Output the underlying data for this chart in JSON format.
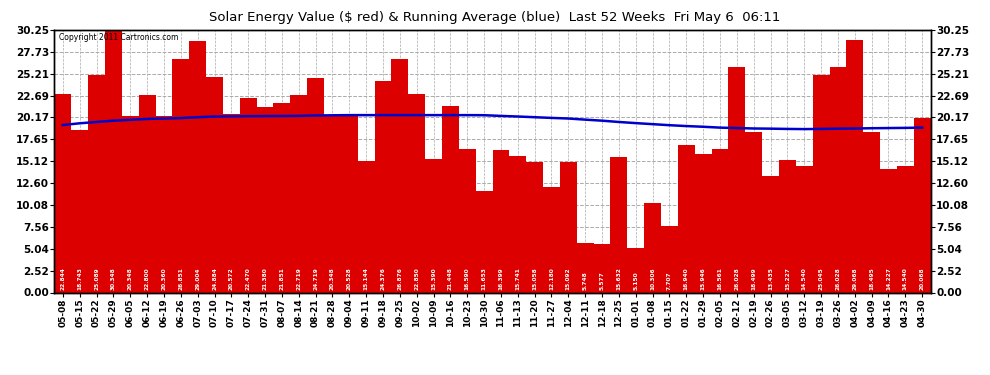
{
  "title": "Solar Energy Value ($ red) & Running Average (blue)  Last 52 Weeks  Fri May 6  06:11",
  "copyright": "Copyright 2011 Cartronics.com",
  "bar_color": "#dd0000",
  "line_color": "#0000cc",
  "background_color": "#ffffff",
  "plot_bg_color": "#ffffff",
  "grid_color": "#aaaaaa",
  "categories": [
    "05-08",
    "05-15",
    "05-22",
    "05-29",
    "06-05",
    "06-12",
    "06-19",
    "06-26",
    "07-03",
    "07-10",
    "07-17",
    "07-24",
    "07-31",
    "08-07",
    "08-14",
    "08-21",
    "08-28",
    "09-04",
    "09-11",
    "09-18",
    "09-25",
    "10-02",
    "10-09",
    "10-16",
    "10-23",
    "10-30",
    "11-06",
    "11-13",
    "11-20",
    "11-27",
    "12-04",
    "12-11",
    "12-18",
    "12-25",
    "01-01",
    "01-08",
    "01-15",
    "01-22",
    "01-29",
    "02-05",
    "02-12",
    "02-19",
    "02-26",
    "03-05",
    "03-12",
    "03-19",
    "03-26",
    "04-02",
    "04-09",
    "04-16",
    "04-23",
    "04-30"
  ],
  "values": [
    22.844,
    18.743,
    25.089,
    30.348,
    20.348,
    22.8,
    20.36,
    26.851,
    29.004,
    24.884,
    20.572,
    22.47,
    21.38,
    21.851,
    22.719,
    24.719,
    20.348,
    20.528,
    15.144,
    24.376,
    26.876,
    22.85,
    15.39,
    21.448,
    16.59,
    11.653,
    16.399,
    15.741,
    15.058,
    12.18,
    15.092,
    5.748,
    5.577,
    15.632,
    5.15,
    10.306,
    7.707,
    16.94,
    15.946,
    16.561,
    26.028,
    18.499,
    13.435,
    15.227,
    14.54,
    25.045,
    26.028,
    29.068,
    18.495,
    14.227,
    14.54,
    20.068
  ],
  "running_avg": [
    19.3,
    19.5,
    19.65,
    19.8,
    19.9,
    20.0,
    20.05,
    20.1,
    20.2,
    20.28,
    20.3,
    20.32,
    20.33,
    20.34,
    20.35,
    20.4,
    20.42,
    20.44,
    20.44,
    20.44,
    20.44,
    20.44,
    20.44,
    20.44,
    20.44,
    20.43,
    20.35,
    20.28,
    20.2,
    20.12,
    20.05,
    19.92,
    19.8,
    19.65,
    19.52,
    19.4,
    19.28,
    19.18,
    19.1,
    19.0,
    18.95,
    18.9,
    18.88,
    18.85,
    18.83,
    18.85,
    18.88,
    18.9,
    18.93,
    18.95,
    18.97,
    19.0
  ],
  "ylim": [
    0.0,
    30.25
  ],
  "yticks": [
    0.0,
    2.52,
    5.04,
    7.56,
    10.08,
    12.6,
    15.12,
    17.65,
    20.17,
    22.69,
    25.21,
    27.73,
    30.25
  ]
}
